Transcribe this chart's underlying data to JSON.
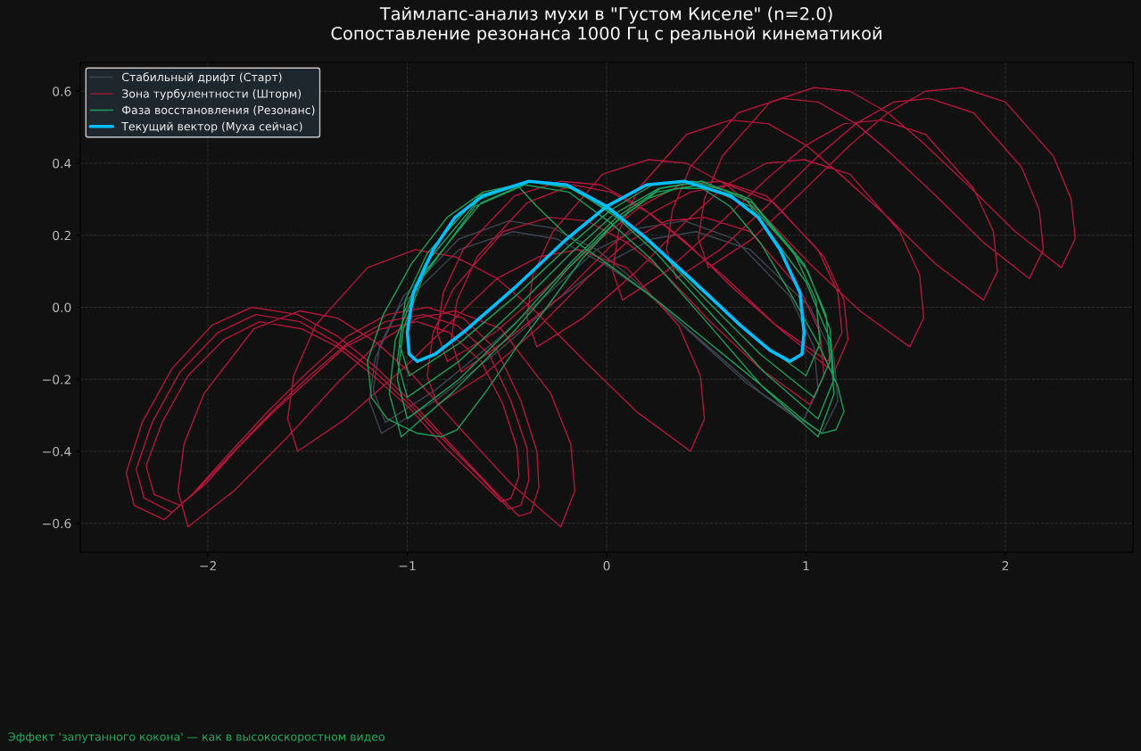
{
  "chart_data": {
    "type": "line",
    "title": "Таймлапс-анализ мухи в \"Густом Киселе\" (n=2.0)",
    "subtitle": "Сопоставление резонанса 1000 Гц с реальной кинематикой",
    "annotations": [
      "Эффект 'запутанного кокона' — как в высокоскоростном видео"
    ],
    "xlim": [
      -2.64,
      2.64
    ],
    "ylim": [
      -0.68,
      0.68
    ],
    "xticks": [
      {
        "value": -2,
        "label": "−2"
      },
      {
        "value": -1,
        "label": "−1"
      },
      0,
      1,
      2
    ],
    "yticks": [
      {
        "value": -0.6,
        "label": "−0.6"
      },
      {
        "value": -0.4,
        "label": "−0.4"
      },
      {
        "value": -0.2,
        "label": "−0.2"
      },
      {
        "value": 0,
        "label": "0.0"
      },
      0.2,
      0.4,
      0.6
    ],
    "grid": true,
    "legend": "top left",
    "series": [
      {
        "name": "Стабильный дрифт (Старт)",
        "color": "#3d4650",
        "x": [
          -1.19,
          -1.13,
          -0.86,
          -0.54,
          -0.25,
          -0.01,
          0.23,
          0.45,
          0.72,
          1.02,
          1.14,
          1.16,
          null,
          -1.19,
          -1.16,
          -1.04,
          -0.74,
          -0.47,
          -0.25,
          -0.01,
          0.2,
          0.49,
          0.78,
          1.08,
          1.16,
          null,
          -1.17,
          -1.11,
          -0.86,
          -0.55,
          -0.27,
          -0.05,
          0.17,
          0.39,
          0.64,
          0.92,
          1.04,
          1.06,
          null,
          -1.17,
          -1.14,
          -1.02,
          -0.74,
          -0.49,
          -0.27,
          -0.05,
          0.15,
          0.42,
          0.7,
          0.98,
          1.06
        ],
        "values": [
          -0.26,
          -0.35,
          -0.26,
          -0.12,
          0.02,
          0.12,
          0.19,
          0.21,
          0.16,
          0.0,
          -0.14,
          -0.26,
          null,
          -0.26,
          -0.14,
          0.0,
          0.16,
          0.21,
          0.19,
          0.12,
          0.04,
          -0.1,
          -0.24,
          -0.35,
          -0.26,
          null,
          -0.23,
          -0.32,
          -0.23,
          -0.09,
          0.05,
          0.16,
          0.22,
          0.24,
          0.19,
          0.03,
          -0.11,
          -0.23,
          null,
          -0.23,
          -0.11,
          0.03,
          0.19,
          0.24,
          0.22,
          0.16,
          0.07,
          -0.07,
          -0.21,
          -0.32,
          -0.23
        ]
      },
      {
        "name": "Зона турбулентности (Шторм)",
        "color": "#b3163a",
        "x": [
          -2.41,
          -2.37,
          -2.22,
          -2.08,
          -1.9,
          -1.7,
          -1.5,
          -1.3,
          -1.1,
          -0.9,
          -0.72,
          -0.55,
          -0.43,
          -0.35,
          -0.34,
          null,
          -2.41,
          -2.33,
          -2.18,
          -1.98,
          -1.78,
          -1.55,
          -1.35,
          -1.15,
          -0.95,
          -0.75,
          -0.58,
          -0.44,
          -0.38,
          -0.34,
          null,
          -2.36,
          -2.32,
          -2.18,
          -2.04,
          -1.87,
          -1.68,
          -1.49,
          -1.3,
          -1.11,
          -0.92,
          -0.75,
          -0.59,
          -0.48,
          -0.4,
          -0.39,
          null,
          -2.36,
          -2.28,
          -2.14,
          -1.95,
          -1.76,
          -1.54,
          -1.35,
          -1.16,
          -0.97,
          -0.78,
          -0.62,
          -0.49,
          -0.43,
          -0.39,
          null,
          -2.31,
          -2.27,
          -2.14,
          -2.01,
          -1.85,
          -1.67,
          -1.49,
          -1.31,
          -1.13,
          -0.95,
          -0.79,
          -0.63,
          -0.52,
          -0.45,
          -0.44,
          null,
          -2.31,
          -2.23,
          -2.1,
          -1.92,
          -1.74,
          -1.53,
          -1.35,
          -1.17,
          -0.99,
          -0.81,
          -0.66,
          -0.53,
          -0.48,
          -0.44,
          null,
          -2.15,
          -2.1,
          -1.87,
          -1.6,
          -1.35,
          -1.15,
          -0.95,
          -0.76,
          -0.53,
          -0.28,
          -0.18,
          -0.16,
          null,
          -2.15,
          -2.12,
          -2.02,
          -1.77,
          -1.54,
          -1.35,
          -1.15,
          -0.97,
          -0.73,
          -0.48,
          -0.23,
          -0.16,
          null,
          -1.6,
          -1.55,
          -1.31,
          -1.02,
          -0.76,
          -0.55,
          -0.34,
          -0.14,
          0.1,
          0.36,
          0.47,
          0.49,
          null,
          -1.6,
          -1.57,
          -1.46,
          -1.2,
          -0.96,
          -0.76,
          -0.55,
          -0.36,
          -0.11,
          0.15,
          0.42,
          0.49,
          null,
          -0.85,
          -0.8,
          -0.56,
          -0.29,
          -0.03,
          0.17,
          0.37,
          0.57,
          0.8,
          1.06,
          1.16,
          1.18,
          null,
          -0.85,
          -0.82,
          -0.72,
          -0.46,
          -0.23,
          -0.03,
          0.17,
          0.35,
          0.6,
          0.85,
          1.11,
          1.18,
          null,
          -0.78,
          -0.73,
          -0.5,
          -0.23,
          0.02,
          0.22,
          0.42,
          0.61,
          0.84,
          1.09,
          1.19,
          1.21,
          null,
          -0.78,
          -0.75,
          -0.65,
          -0.4,
          -0.17,
          0.02,
          0.22,
          0.4,
          0.64,
          0.89,
          1.14,
          1.21,
          null,
          -0.9,
          -0.85,
          -0.62,
          -0.35,
          -0.1,
          0.1,
          0.3,
          0.49,
          0.72,
          0.97,
          1.07,
          1.09,
          null,
          -0.9,
          -0.87,
          -0.77,
          -0.52,
          -0.29,
          -0.1,
          0.1,
          0.28,
          0.52,
          0.77,
          1.02,
          1.09,
          null,
          -0.4,
          -0.35,
          -0.12,
          0.15,
          0.4,
          0.6,
          0.8,
          0.99,
          1.22,
          1.47,
          1.57,
          1.59,
          null,
          -0.4,
          -0.37,
          -0.27,
          -0.02,
          0.21,
          0.4,
          0.6,
          0.78,
          1.02,
          1.27,
          1.52,
          1.59,
          null,
          0.03,
          0.08,
          0.3,
          0.56,
          0.81,
          1.0,
          1.19,
          1.38,
          1.6,
          1.84,
          1.94,
          1.96,
          null,
          0.03,
          0.06,
          0.16,
          0.4,
          0.62,
          0.81,
          1.0,
          1.17,
          1.41,
          1.65,
          1.89,
          1.96,
          null,
          0.3,
          0.35,
          0.57,
          0.82,
          1.06,
          1.25,
          1.44,
          1.62,
          1.84,
          2.08,
          2.17,
          2.19,
          null,
          0.3,
          0.33,
          0.42,
          0.66,
          0.88,
          1.06,
          1.25,
          1.42,
          1.65,
          1.89,
          2.12,
          2.19,
          null,
          0.46,
          0.51,
          0.73,
          0.98,
          1.22,
          1.41,
          1.6,
          1.78,
          2.0,
          2.24,
          2.33,
          2.35,
          null,
          0.46,
          0.49,
          0.58,
          0.82,
          1.04,
          1.22,
          1.41,
          1.58,
          1.81,
          2.05,
          2.28,
          2.35
        ],
        "values": [
          -0.46,
          -0.55,
          -0.59,
          -0.52,
          -0.41,
          -0.29,
          -0.18,
          -0.08,
          -0.02,
          0.0,
          -0.03,
          -0.12,
          -0.26,
          -0.4,
          -0.5,
          null,
          -0.46,
          -0.32,
          -0.17,
          -0.05,
          0.0,
          -0.02,
          -0.08,
          -0.17,
          -0.28,
          -0.4,
          -0.5,
          -0.58,
          -0.57,
          -0.5,
          null,
          -0.45,
          -0.53,
          -0.57,
          -0.5,
          -0.4,
          -0.29,
          -0.19,
          -0.1,
          -0.04,
          -0.02,
          -0.05,
          -0.13,
          -0.26,
          -0.39,
          -0.48,
          null,
          -0.45,
          -0.32,
          -0.18,
          -0.07,
          -0.02,
          -0.04,
          -0.1,
          -0.18,
          -0.28,
          -0.39,
          -0.48,
          -0.56,
          -0.55,
          -0.48,
          null,
          -0.44,
          -0.52,
          -0.55,
          -0.49,
          -0.39,
          -0.29,
          -0.2,
          -0.11,
          -0.06,
          -0.04,
          -0.07,
          -0.15,
          -0.27,
          -0.39,
          -0.47,
          null,
          -0.44,
          -0.32,
          -0.19,
          -0.09,
          -0.04,
          -0.06,
          -0.11,
          -0.19,
          -0.28,
          -0.39,
          -0.47,
          -0.54,
          -0.53,
          -0.47,
          null,
          -0.51,
          -0.61,
          -0.51,
          -0.36,
          -0.21,
          -0.1,
          -0.03,
          -0.01,
          -0.06,
          -0.24,
          -0.38,
          -0.51,
          null,
          -0.51,
          -0.38,
          -0.24,
          -0.06,
          -0.01,
          -0.03,
          -0.1,
          -0.19,
          -0.34,
          -0.49,
          -0.61,
          -0.51,
          null,
          -0.31,
          -0.4,
          -0.31,
          -0.17,
          -0.03,
          0.08,
          0.14,
          0.16,
          0.11,
          -0.05,
          -0.19,
          -0.31,
          null,
          -0.31,
          -0.19,
          -0.05,
          0.11,
          0.16,
          0.14,
          0.08,
          -0.01,
          -0.15,
          -0.29,
          -0.4,
          -0.31,
          null,
          -0.07,
          -0.15,
          -0.07,
          0.06,
          0.19,
          0.28,
          0.34,
          0.35,
          0.31,
          0.16,
          0.04,
          -0.07,
          null,
          -0.07,
          0.04,
          0.16,
          0.31,
          0.35,
          0.34,
          0.28,
          0.2,
          0.08,
          -0.05,
          -0.15,
          -0.07,
          null,
          -0.09,
          -0.18,
          -0.09,
          0.03,
          0.17,
          0.26,
          0.32,
          0.34,
          0.29,
          0.14,
          0.02,
          -0.09,
          null,
          -0.09,
          0.02,
          0.14,
          0.29,
          0.34,
          0.32,
          0.26,
          0.18,
          0.05,
          -0.07,
          -0.18,
          -0.09,
          null,
          -0.19,
          -0.27,
          -0.19,
          -0.06,
          0.08,
          0.18,
          0.24,
          0.25,
          0.21,
          0.05,
          -0.07,
          -0.19,
          null,
          -0.19,
          -0.07,
          0.05,
          0.21,
          0.25,
          0.24,
          0.18,
          0.1,
          -0.04,
          -0.17,
          -0.27,
          -0.19,
          null,
          -0.03,
          -0.11,
          -0.03,
          0.1,
          0.24,
          0.34,
          0.4,
          0.41,
          0.37,
          0.21,
          0.09,
          -0.03,
          null,
          -0.03,
          0.09,
          0.21,
          0.37,
          0.41,
          0.4,
          0.34,
          0.26,
          0.12,
          -0.01,
          -0.11,
          -0.03,
          null,
          0.1,
          0.02,
          0.1,
          0.23,
          0.36,
          0.45,
          0.51,
          0.52,
          0.48,
          0.33,
          0.21,
          0.1,
          null,
          0.1,
          0.21,
          0.33,
          0.48,
          0.52,
          0.51,
          0.45,
          0.37,
          0.25,
          0.12,
          0.02,
          0.1,
          null,
          0.16,
          0.08,
          0.16,
          0.29,
          0.42,
          0.51,
          0.57,
          0.58,
          0.54,
          0.39,
          0.27,
          0.16,
          null,
          0.16,
          0.27,
          0.39,
          0.54,
          0.58,
          0.57,
          0.51,
          0.43,
          0.31,
          0.18,
          0.08,
          0.16,
          null,
          0.19,
          0.11,
          0.19,
          0.32,
          0.45,
          0.54,
          0.6,
          0.61,
          0.57,
          0.42,
          0.3,
          0.19,
          null,
          0.19,
          0.3,
          0.42,
          0.57,
          0.61,
          0.6,
          0.54,
          0.46,
          0.34,
          0.21,
          0.11,
          0.19
        ]
      },
      {
        "name": "Фаза восстановления (Резонанс)",
        "color": "#1a9f5a",
        "x": [
          -1.2,
          -1.18,
          -1.1,
          -0.95,
          -0.83,
          -0.75,
          -0.6,
          -0.45,
          -0.3,
          -0.13,
          0.05,
          0.2,
          0.35,
          0.48,
          0.62,
          0.77,
          0.92,
          1.06,
          1.16,
          1.19,
          null,
          -1.2,
          -1.12,
          -0.98,
          -0.8,
          -0.62,
          -0.45,
          -0.35,
          -0.2,
          0.03,
          0.25,
          0.45,
          0.65,
          0.85,
          0.98,
          1.08,
          1.15,
          1.19,
          null,
          -1.09,
          -1.03,
          -0.78,
          -0.47,
          -0.19,
          0.03,
          0.25,
          0.47,
          0.72,
          1.0,
          1.12,
          1.14,
          null,
          -1.09,
          -1.06,
          -0.94,
          -0.66,
          -0.41,
          -0.19,
          0.03,
          0.23,
          0.5,
          0.78,
          1.06,
          1.14,
          null,
          -1.05,
          -1.0,
          -0.74,
          -0.45,
          -0.17,
          0.05,
          0.27,
          0.48,
          0.73,
          1.01,
          1.12,
          1.14,
          null,
          -1.05,
          -1.02,
          -0.91,
          -0.63,
          -0.38,
          -0.17,
          0.05,
          0.25,
          0.51,
          0.79,
          1.06,
          1.14,
          null,
          -1.05,
          -1.0,
          -0.74,
          -0.45,
          -0.18,
          0.04,
          0.26,
          0.47,
          0.72,
          0.99,
          1.1,
          1.12,
          null,
          -1.05,
          -1.02,
          -0.91,
          -0.64,
          -0.39,
          -0.18,
          0.04,
          0.24,
          0.5,
          0.77,
          1.04,
          1.12,
          null,
          -1.04,
          -0.99,
          -0.74,
          -0.46,
          -0.19,
          0.02,
          0.23,
          0.43,
          0.68,
          0.94,
          1.05,
          1.07,
          null,
          -1.04,
          -1.01,
          -0.9,
          -0.64,
          -0.39,
          -0.19,
          0.02,
          0.21,
          0.47,
          0.73,
          1.0,
          1.07
        ],
        "values": [
          -0.15,
          -0.25,
          -0.31,
          -0.35,
          -0.36,
          -0.34,
          -0.23,
          -0.11,
          0.0,
          0.13,
          0.24,
          0.3,
          0.33,
          0.33,
          0.28,
          0.18,
          0.04,
          -0.1,
          -0.22,
          -0.29,
          null,
          -0.15,
          -0.02,
          0.12,
          0.25,
          0.32,
          0.34,
          0.28,
          0.2,
          0.11,
          0.02,
          -0.07,
          -0.16,
          -0.25,
          -0.31,
          -0.35,
          -0.34,
          -0.29,
          null,
          -0.24,
          -0.36,
          -0.24,
          -0.07,
          0.11,
          0.23,
          0.32,
          0.34,
          0.28,
          0.07,
          -0.09,
          -0.24,
          null,
          -0.24,
          -0.09,
          0.07,
          0.28,
          0.34,
          0.32,
          0.23,
          0.13,
          -0.04,
          -0.22,
          -0.36,
          -0.24,
          null,
          -0.2,
          -0.31,
          -0.2,
          -0.04,
          0.13,
          0.25,
          0.33,
          0.35,
          0.29,
          0.1,
          -0.06,
          -0.2,
          null,
          -0.2,
          -0.06,
          0.1,
          0.29,
          0.35,
          0.33,
          0.25,
          0.15,
          -0.01,
          -0.18,
          -0.31,
          -0.2,
          null,
          -0.15,
          -0.25,
          -0.15,
          0.0,
          0.15,
          0.26,
          0.33,
          0.35,
          0.3,
          0.12,
          -0.02,
          -0.15,
          null,
          -0.15,
          -0.02,
          0.12,
          0.3,
          0.35,
          0.33,
          0.26,
          0.17,
          0.02,
          -0.13,
          -0.25,
          -0.15,
          null,
          -0.1,
          -0.19,
          -0.1,
          0.03,
          0.17,
          0.27,
          0.34,
          0.35,
          0.31,
          0.15,
          0.02,
          -0.1,
          null,
          -0.1,
          0.02,
          0.15,
          0.31,
          0.35,
          0.34,
          0.27,
          0.19,
          0.05,
          -0.08,
          -0.19,
          -0.1
        ]
      },
      {
        "name": "Текущий вектор (Муха сейчас)",
        "color": "#00bfff",
        "x": [
          -1.0,
          -0.99,
          -0.95,
          -0.86,
          -0.72,
          -0.45,
          -0.2,
          0,
          0.2,
          0.39,
          0.62,
          0.76,
          0.87,
          0.97,
          0.99,
          null,
          -1.0,
          -0.97,
          -0.87,
          -0.76,
          -0.62,
          -0.39,
          -0.2,
          0,
          0.18,
          0.42,
          0.67,
          0.82,
          0.92,
          0.98,
          0.99
        ],
        "values": [
          -0.07,
          -0.13,
          -0.15,
          -0.13,
          -0.07,
          0.06,
          0.19,
          0.28,
          0.34,
          0.35,
          0.31,
          0.25,
          0.16,
          0.04,
          -0.07,
          null,
          -0.07,
          0.04,
          0.16,
          0.25,
          0.31,
          0.35,
          0.34,
          0.28,
          0.2,
          0.08,
          -0.05,
          -0.12,
          -0.15,
          -0.13,
          -0.07
        ]
      }
    ]
  }
}
